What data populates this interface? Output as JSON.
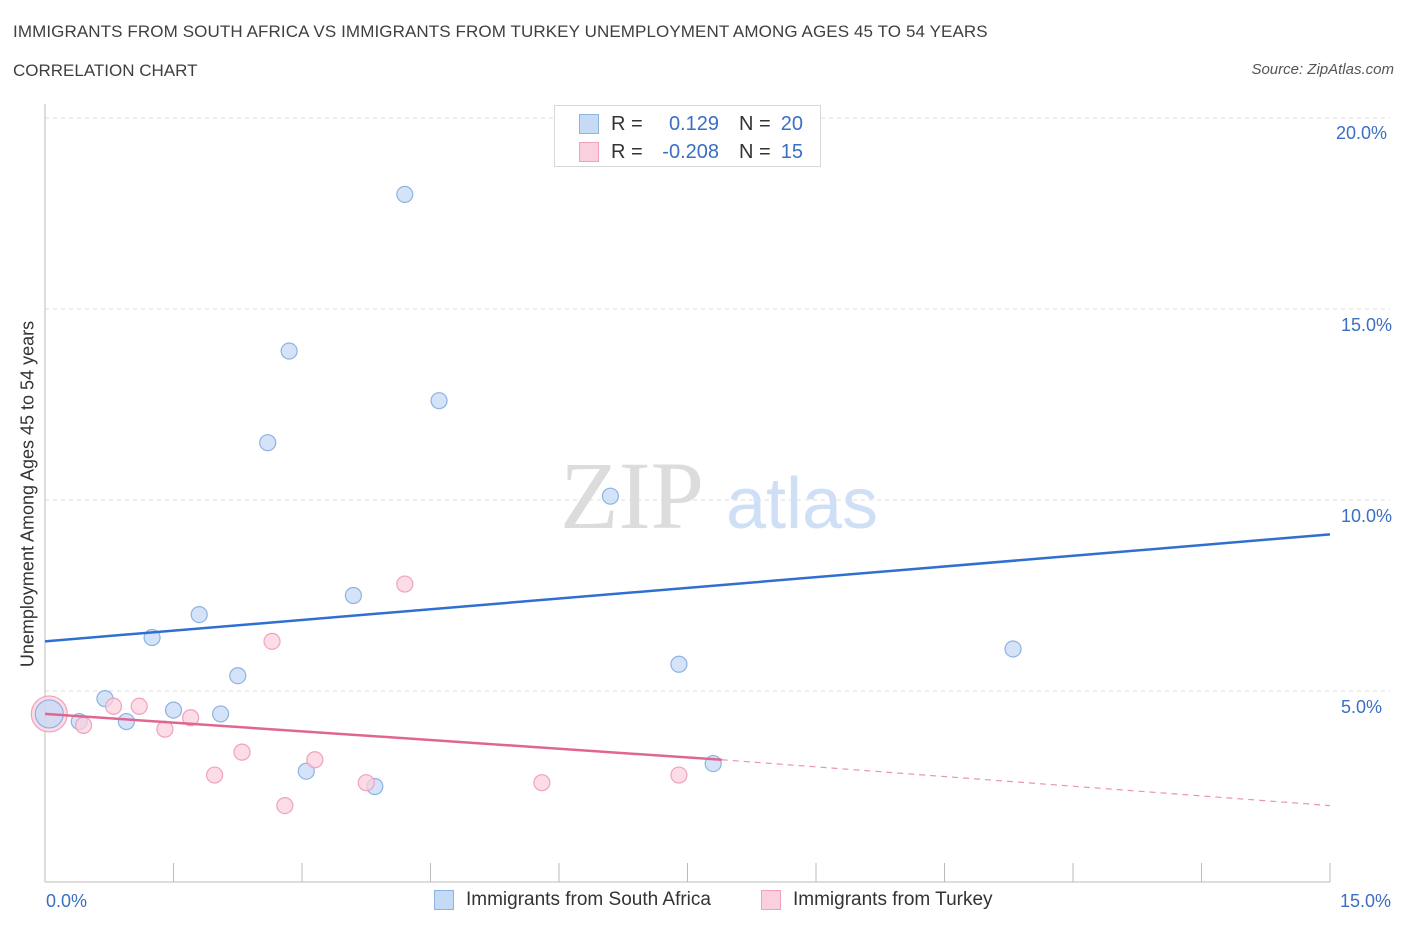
{
  "header": {
    "title": "IMMIGRANTS FROM SOUTH AFRICA VS IMMIGRANTS FROM TURKEY UNEMPLOYMENT AMONG AGES 45 TO 54 YEARS",
    "subtitle": "CORRELATION CHART",
    "source": "Source: ZipAtlas.com"
  },
  "watermark": {
    "zip": "ZIP",
    "atlas": "atlas"
  },
  "legend": {
    "r_label": "R =",
    "n_label": "N =",
    "rows": [
      {
        "r": "0.129",
        "n": "20"
      },
      {
        "r": "-0.208",
        "n": "15"
      }
    ]
  },
  "colors": {
    "south_africa_fill": "#c5daf5",
    "south_africa_stroke": "#8db3e2",
    "south_africa_line": "#2f6fcf",
    "turkey_fill": "#fbd0de",
    "turkey_stroke": "#f0a2bb",
    "turkey_line": "#e0668f",
    "axis_text": "#3a6fc4",
    "grid": "#dedede"
  },
  "chart_data": {
    "type": "scatter",
    "title": "IMMIGRANTS FROM SOUTH AFRICA VS IMMIGRANTS FROM TURKEY UNEMPLOYMENT AMONG AGES 45 TO 54 YEARS",
    "xlabel": "",
    "ylabel": "Unemployment Among Ages 45 to 54 years",
    "xlim": [
      0,
      15
    ],
    "ylim": [
      0,
      20
    ],
    "x_tick_labels": [
      "0.0%",
      "15.0%"
    ],
    "y_tick_labels": [
      "5.0%",
      "10.0%",
      "15.0%",
      "20.0%"
    ],
    "y_ticks": [
      5,
      10,
      15,
      20
    ],
    "grid": true,
    "legend_position": "bottom",
    "series": [
      {
        "name": "Immigrants from South Africa",
        "points": [
          [
            0.05,
            4.4
          ],
          [
            0.4,
            4.2
          ],
          [
            0.7,
            4.8
          ],
          [
            0.95,
            4.2
          ],
          [
            1.25,
            6.4
          ],
          [
            1.5,
            4.5
          ],
          [
            1.8,
            7.0
          ],
          [
            2.05,
            4.4
          ],
          [
            2.25,
            5.4
          ],
          [
            2.6,
            11.5
          ],
          [
            2.85,
            13.9
          ],
          [
            3.05,
            2.9
          ],
          [
            3.6,
            7.5
          ],
          [
            3.85,
            2.5
          ],
          [
            4.2,
            18.0
          ],
          [
            4.6,
            12.6
          ],
          [
            6.6,
            10.1
          ],
          [
            7.4,
            5.7
          ],
          [
            7.8,
            3.1
          ],
          [
            11.3,
            6.1
          ]
        ],
        "trend": {
          "x": [
            0,
            15
          ],
          "y": [
            6.3,
            9.1
          ]
        }
      },
      {
        "name": "Immigrants from Turkey",
        "points": [
          [
            0.05,
            4.4
          ],
          [
            0.45,
            4.1
          ],
          [
            0.8,
            4.6
          ],
          [
            1.1,
            4.6
          ],
          [
            1.4,
            4.0
          ],
          [
            1.7,
            4.3
          ],
          [
            1.98,
            2.8
          ],
          [
            2.3,
            3.4
          ],
          [
            2.65,
            6.3
          ],
          [
            2.8,
            2.0
          ],
          [
            3.15,
            3.2
          ],
          [
            3.75,
            2.6
          ],
          [
            4.2,
            7.8
          ],
          [
            5.8,
            2.6
          ],
          [
            7.4,
            2.8
          ]
        ],
        "trend": {
          "x": [
            0,
            7.9
          ],
          "y": [
            4.4,
            3.2
          ]
        },
        "trend_extension": {
          "x": [
            7.9,
            15
          ],
          "y": [
            3.2,
            2.0
          ]
        }
      }
    ]
  }
}
